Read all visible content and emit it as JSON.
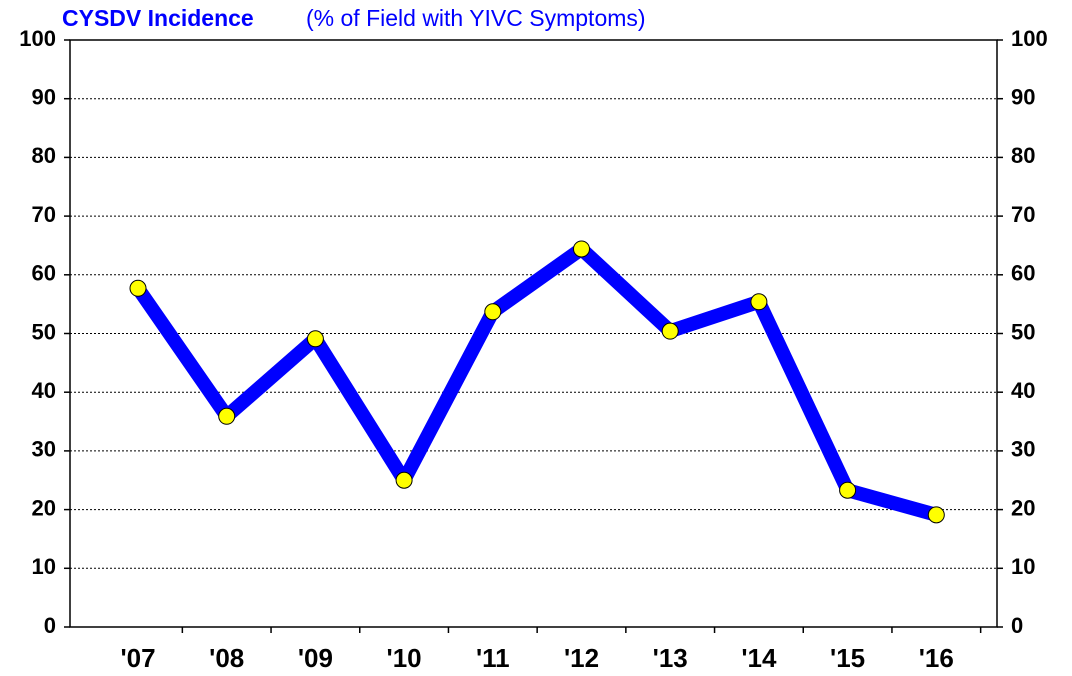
{
  "chart_data": {
    "type": "line",
    "title": "CYSDV Incidence",
    "subtitle": "(% of Field with YIVC Symptoms)",
    "categories": [
      "'07",
      "'08",
      "'09",
      "'10",
      "'11",
      "'12",
      "'13",
      "'14",
      "'15",
      "'16"
    ],
    "series": [
      {
        "name": "CYSDV Incidence",
        "color": "#0000ff",
        "marker_color": "#ffff00",
        "values": [
          57.7,
          35.9,
          49.1,
          25.0,
          53.7,
          64.4,
          50.4,
          55.4,
          23.3,
          19.1
        ]
      }
    ],
    "ylim": [
      0,
      100
    ],
    "yticks": [
      0,
      10,
      20,
      30,
      40,
      50,
      60,
      70,
      80,
      90,
      100
    ],
    "y2lim": [
      0,
      100
    ],
    "y2ticks": [
      0,
      10,
      20,
      30,
      40,
      50,
      60,
      70,
      80,
      90,
      100
    ],
    "grid": true,
    "legend": false
  }
}
